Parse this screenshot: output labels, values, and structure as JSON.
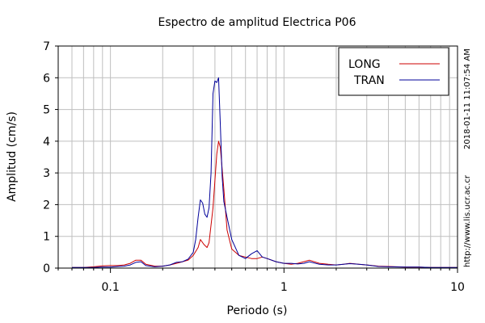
{
  "chart_data": {
    "type": "line",
    "title": "Espectro de amplitud Electrica P06",
    "xlabel": "Periodo (s)",
    "ylabel": "Amplitud (cm/s)",
    "x_scale": "log",
    "xlim": [
      0.05,
      10
    ],
    "ylim": [
      0,
      7
    ],
    "x_ticks": [
      0.1,
      1,
      10
    ],
    "x_tick_labels": [
      "0.1",
      "1",
      "10"
    ],
    "y_ticks": [
      0,
      1,
      2,
      3,
      4,
      5,
      6,
      7
    ],
    "y_tick_labels": [
      "0",
      "1",
      "2",
      "3",
      "4",
      "5",
      "6",
      "7"
    ],
    "grid": true,
    "legend_position": "top-right",
    "side_text": {
      "timestamp": "2018-01-11 11:07:54 AM",
      "url": "http://www.lis.ucr.ac.cr"
    },
    "series": [
      {
        "name": "LONG",
        "color": "#cc0000",
        "points": [
          [
            0.06,
            0.02
          ],
          [
            0.07,
            0.02
          ],
          [
            0.08,
            0.04
          ],
          [
            0.09,
            0.07
          ],
          [
            0.1,
            0.08
          ],
          [
            0.11,
            0.08
          ],
          [
            0.12,
            0.1
          ],
          [
            0.13,
            0.15
          ],
          [
            0.14,
            0.25
          ],
          [
            0.15,
            0.25
          ],
          [
            0.16,
            0.12
          ],
          [
            0.18,
            0.06
          ],
          [
            0.2,
            0.06
          ],
          [
            0.22,
            0.1
          ],
          [
            0.24,
            0.15
          ],
          [
            0.26,
            0.2
          ],
          [
            0.28,
            0.25
          ],
          [
            0.3,
            0.4
          ],
          [
            0.32,
            0.65
          ],
          [
            0.33,
            0.9
          ],
          [
            0.345,
            0.75
          ],
          [
            0.36,
            0.65
          ],
          [
            0.37,
            0.8
          ],
          [
            0.39,
            1.9
          ],
          [
            0.41,
            3.6
          ],
          [
            0.42,
            4.0
          ],
          [
            0.43,
            3.8
          ],
          [
            0.45,
            2.5
          ],
          [
            0.47,
            1.2
          ],
          [
            0.5,
            0.6
          ],
          [
            0.55,
            0.4
          ],
          [
            0.6,
            0.35
          ],
          [
            0.65,
            0.3
          ],
          [
            0.7,
            0.3
          ],
          [
            0.75,
            0.35
          ],
          [
            0.8,
            0.3
          ],
          [
            0.9,
            0.2
          ],
          [
            1.0,
            0.15
          ],
          [
            1.1,
            0.12
          ],
          [
            1.2,
            0.15
          ],
          [
            1.3,
            0.2
          ],
          [
            1.4,
            0.25
          ],
          [
            1.6,
            0.15
          ],
          [
            1.8,
            0.12
          ],
          [
            2.0,
            0.1
          ],
          [
            2.2,
            0.12
          ],
          [
            2.4,
            0.15
          ],
          [
            2.7,
            0.12
          ],
          [
            3.0,
            0.1
          ],
          [
            3.5,
            0.06
          ],
          [
            4.0,
            0.05
          ],
          [
            5.0,
            0.03
          ],
          [
            6.0,
            0.03
          ],
          [
            7.0,
            0.02
          ],
          [
            8.0,
            0.02
          ],
          [
            10.0,
            0.02
          ]
        ]
      },
      {
        "name": "TRAN",
        "color": "#000099",
        "points": [
          [
            0.06,
            0.02
          ],
          [
            0.07,
            0.02
          ],
          [
            0.08,
            0.02
          ],
          [
            0.09,
            0.03
          ],
          [
            0.1,
            0.03
          ],
          [
            0.11,
            0.05
          ],
          [
            0.12,
            0.06
          ],
          [
            0.13,
            0.1
          ],
          [
            0.14,
            0.18
          ],
          [
            0.15,
            0.2
          ],
          [
            0.16,
            0.08
          ],
          [
            0.18,
            0.04
          ],
          [
            0.2,
            0.06
          ],
          [
            0.22,
            0.1
          ],
          [
            0.24,
            0.18
          ],
          [
            0.26,
            0.2
          ],
          [
            0.28,
            0.28
          ],
          [
            0.3,
            0.5
          ],
          [
            0.31,
            0.9
          ],
          [
            0.32,
            1.6
          ],
          [
            0.33,
            2.15
          ],
          [
            0.34,
            2.05
          ],
          [
            0.35,
            1.7
          ],
          [
            0.36,
            1.6
          ],
          [
            0.37,
            1.9
          ],
          [
            0.38,
            3.0
          ],
          [
            0.39,
            5.5
          ],
          [
            0.4,
            5.9
          ],
          [
            0.41,
            5.85
          ],
          [
            0.42,
            6.0
          ],
          [
            0.43,
            4.5
          ],
          [
            0.44,
            2.9
          ],
          [
            0.45,
            2.1
          ],
          [
            0.47,
            1.6
          ],
          [
            0.5,
            0.9
          ],
          [
            0.55,
            0.4
          ],
          [
            0.6,
            0.3
          ],
          [
            0.65,
            0.45
          ],
          [
            0.7,
            0.55
          ],
          [
            0.75,
            0.35
          ],
          [
            0.8,
            0.3
          ],
          [
            0.9,
            0.2
          ],
          [
            1.0,
            0.15
          ],
          [
            1.1,
            0.15
          ],
          [
            1.2,
            0.13
          ],
          [
            1.3,
            0.15
          ],
          [
            1.4,
            0.2
          ],
          [
            1.6,
            0.12
          ],
          [
            1.8,
            0.1
          ],
          [
            2.0,
            0.1
          ],
          [
            2.2,
            0.12
          ],
          [
            2.4,
            0.14
          ],
          [
            2.7,
            0.12
          ],
          [
            3.0,
            0.1
          ],
          [
            3.5,
            0.05
          ],
          [
            4.0,
            0.04
          ],
          [
            5.0,
            0.03
          ],
          [
            6.0,
            0.03
          ],
          [
            7.0,
            0.02
          ],
          [
            8.0,
            0.02
          ],
          [
            10.0,
            0.02
          ]
        ]
      }
    ]
  }
}
